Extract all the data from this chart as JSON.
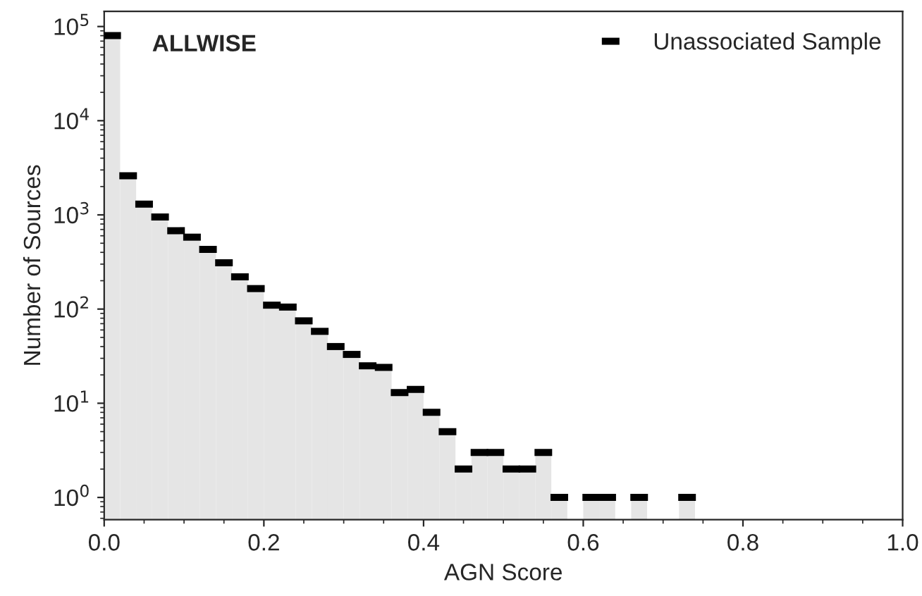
{
  "chart_data": {
    "type": "histogram",
    "xlabel": "AGN Score",
    "ylabel": "Number of Sources",
    "annotations": [
      "ALLWISE"
    ],
    "bins": [
      0.0,
      0.02,
      0.04,
      0.06,
      0.08,
      0.1,
      0.12,
      0.14,
      0.16,
      0.18,
      0.2,
      0.22,
      0.24,
      0.26,
      0.28,
      0.3,
      0.32,
      0.34,
      0.36,
      0.38,
      0.4,
      0.42,
      0.44,
      0.46,
      0.48,
      0.5,
      0.52,
      0.54,
      0.56,
      0.58,
      0.6,
      0.62,
      0.64,
      0.66,
      0.68,
      0.7,
      0.72,
      0.74
    ],
    "series": [
      {
        "type": "histogram",
        "color": "#e5e5e5",
        "values": [
          80000,
          2600,
          1300,
          950,
          680,
          580,
          430,
          310,
          220,
          165,
          110,
          105,
          75,
          58,
          40,
          33,
          25,
          24,
          13,
          14,
          8,
          5,
          2,
          3,
          3,
          2,
          2,
          3,
          1,
          null,
          1,
          1,
          null,
          1,
          null,
          null,
          1
        ]
      },
      {
        "type": "scatter",
        "name": "Unassociated Sample",
        "color": "#000000",
        "marker": "square",
        "x": [
          0.01,
          0.03,
          0.05,
          0.07,
          0.09,
          0.11,
          0.13,
          0.15,
          0.17,
          0.19,
          0.21,
          0.23,
          0.25,
          0.27,
          0.29,
          0.31,
          0.33,
          0.35,
          0.37,
          0.39,
          0.41,
          0.43,
          0.45,
          0.47,
          0.49,
          0.51,
          0.53,
          0.55,
          0.57,
          0.61,
          0.63,
          0.67,
          0.73
        ],
        "values": [
          80000,
          2600,
          1300,
          950,
          680,
          580,
          430,
          310,
          220,
          165,
          110,
          105,
          75,
          58,
          40,
          33,
          25,
          24,
          13,
          14,
          8,
          5,
          2,
          3,
          3,
          2,
          2,
          3,
          1,
          1,
          1,
          1,
          1
        ]
      }
    ],
    "log": "y",
    "xlim": [
      0.0,
      1.0
    ],
    "xticks": [
      {
        "value": 0.0,
        "label": "0.0"
      },
      0.2,
      0.4,
      0.6,
      0.8,
      {
        "value": 1.0,
        "label": "1.0"
      }
    ],
    "ylim": [
      0.58,
      145000
    ],
    "yticks": [
      {
        "value": 1,
        "label": "10$^{0}$"
      },
      {
        "value": 10,
        "label": "10$^{1}$"
      },
      {
        "value": 100,
        "label": "10$^{2}$"
      },
      {
        "value": 1000,
        "label": "10$^{3}$"
      },
      {
        "value": 10000,
        "label": "10$^{4}$"
      },
      {
        "value": 100000,
        "label": "10$^{5}$"
      }
    ],
    "legend": "top right",
    "grid": false
  }
}
